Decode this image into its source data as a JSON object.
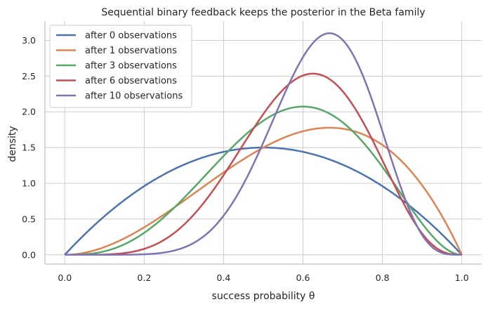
{
  "chart_data": {
    "type": "line",
    "title": "Sequential binary feedback keeps the posterior in the Beta family",
    "xlabel": "success probability θ",
    "ylabel": "density",
    "xlim": [
      -0.05,
      1.05
    ],
    "ylim": [
      -0.13,
      3.27
    ],
    "xticks": [
      0.0,
      0.2,
      0.4,
      0.6,
      0.8,
      1.0
    ],
    "xtick_labels": [
      "0.0",
      "0.2",
      "0.4",
      "0.6",
      "0.8",
      "1.0"
    ],
    "yticks": [
      0.0,
      0.5,
      1.0,
      1.5,
      2.0,
      2.5,
      3.0
    ],
    "ytick_labels": [
      "0.0",
      "0.5",
      "1.0",
      "1.5",
      "2.0",
      "2.5",
      "3.0"
    ],
    "grid": true,
    "legend_position": "upper left",
    "series": [
      {
        "name": "after 0 observations",
        "color": "#4c72b0",
        "beta": [
          2,
          2
        ]
      },
      {
        "name": "after 1 observations",
        "color": "#dd8452",
        "beta": [
          3,
          2
        ]
      },
      {
        "name": "after 3 observations",
        "color": "#55a868",
        "beta": [
          4,
          3
        ]
      },
      {
        "name": "after 6 observations",
        "color": "#c44e52",
        "beta": [
          6,
          4
        ]
      },
      {
        "name": "after 10 observations",
        "color": "#8172b3",
        "beta": [
          9,
          5
        ]
      }
    ]
  }
}
